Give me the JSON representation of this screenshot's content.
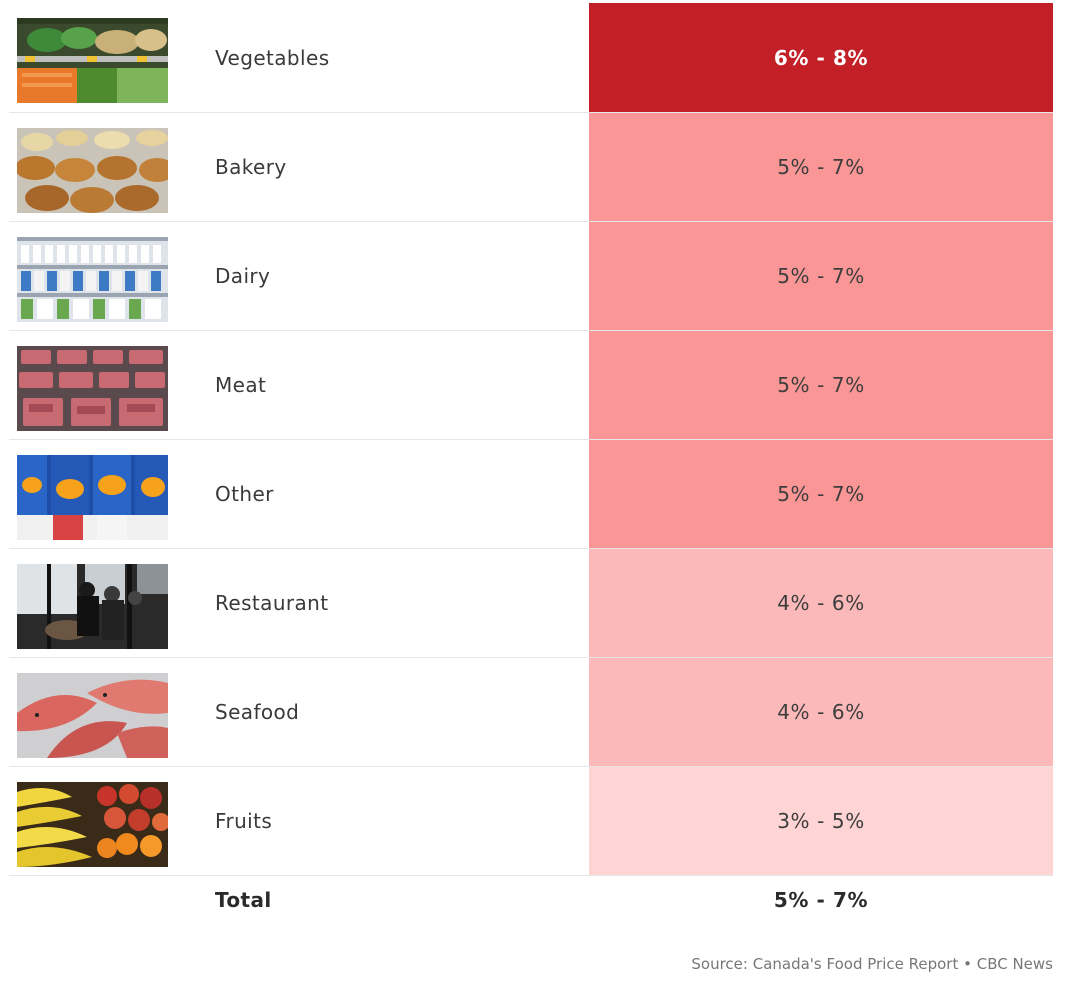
{
  "chart_data": {
    "type": "table",
    "columns": [
      "category",
      "forecast_range"
    ],
    "rows": [
      {
        "category": "Vegetables",
        "range": "6% - 8%",
        "low": 6,
        "high": 8,
        "image": "vegetables-photo",
        "color": "#c21f26"
      },
      {
        "category": "Bakery",
        "range": "5% - 7%",
        "low": 5,
        "high": 7,
        "image": "bakery-photo",
        "color": "#fa9796"
      },
      {
        "category": "Dairy",
        "range": "5% - 7%",
        "low": 5,
        "high": 7,
        "image": "dairy-photo",
        "color": "#fa9796"
      },
      {
        "category": "Meat",
        "range": "5% - 7%",
        "low": 5,
        "high": 7,
        "image": "meat-photo",
        "color": "#fa9796"
      },
      {
        "category": "Other",
        "range": "5% - 7%",
        "low": 5,
        "high": 7,
        "image": "packaged-goods-photo",
        "color": "#fa9796"
      },
      {
        "category": "Restaurant",
        "range": "4% - 6%",
        "low": 4,
        "high": 6,
        "image": "restaurant-photo",
        "color": "#fbbab9"
      },
      {
        "category": "Seafood",
        "range": "4% - 6%",
        "low": 4,
        "high": 6,
        "image": "seafood-photo",
        "color": "#fbbab9"
      },
      {
        "category": "Fruits",
        "range": "3% - 5%",
        "low": 3,
        "high": 5,
        "image": "fruits-photo",
        "color": "#fed5d4"
      }
    ],
    "total": {
      "label": "Total",
      "range": "5% - 7%",
      "low": 5,
      "high": 7
    },
    "source": "Source: Canada's Food Price Report • CBC News"
  }
}
